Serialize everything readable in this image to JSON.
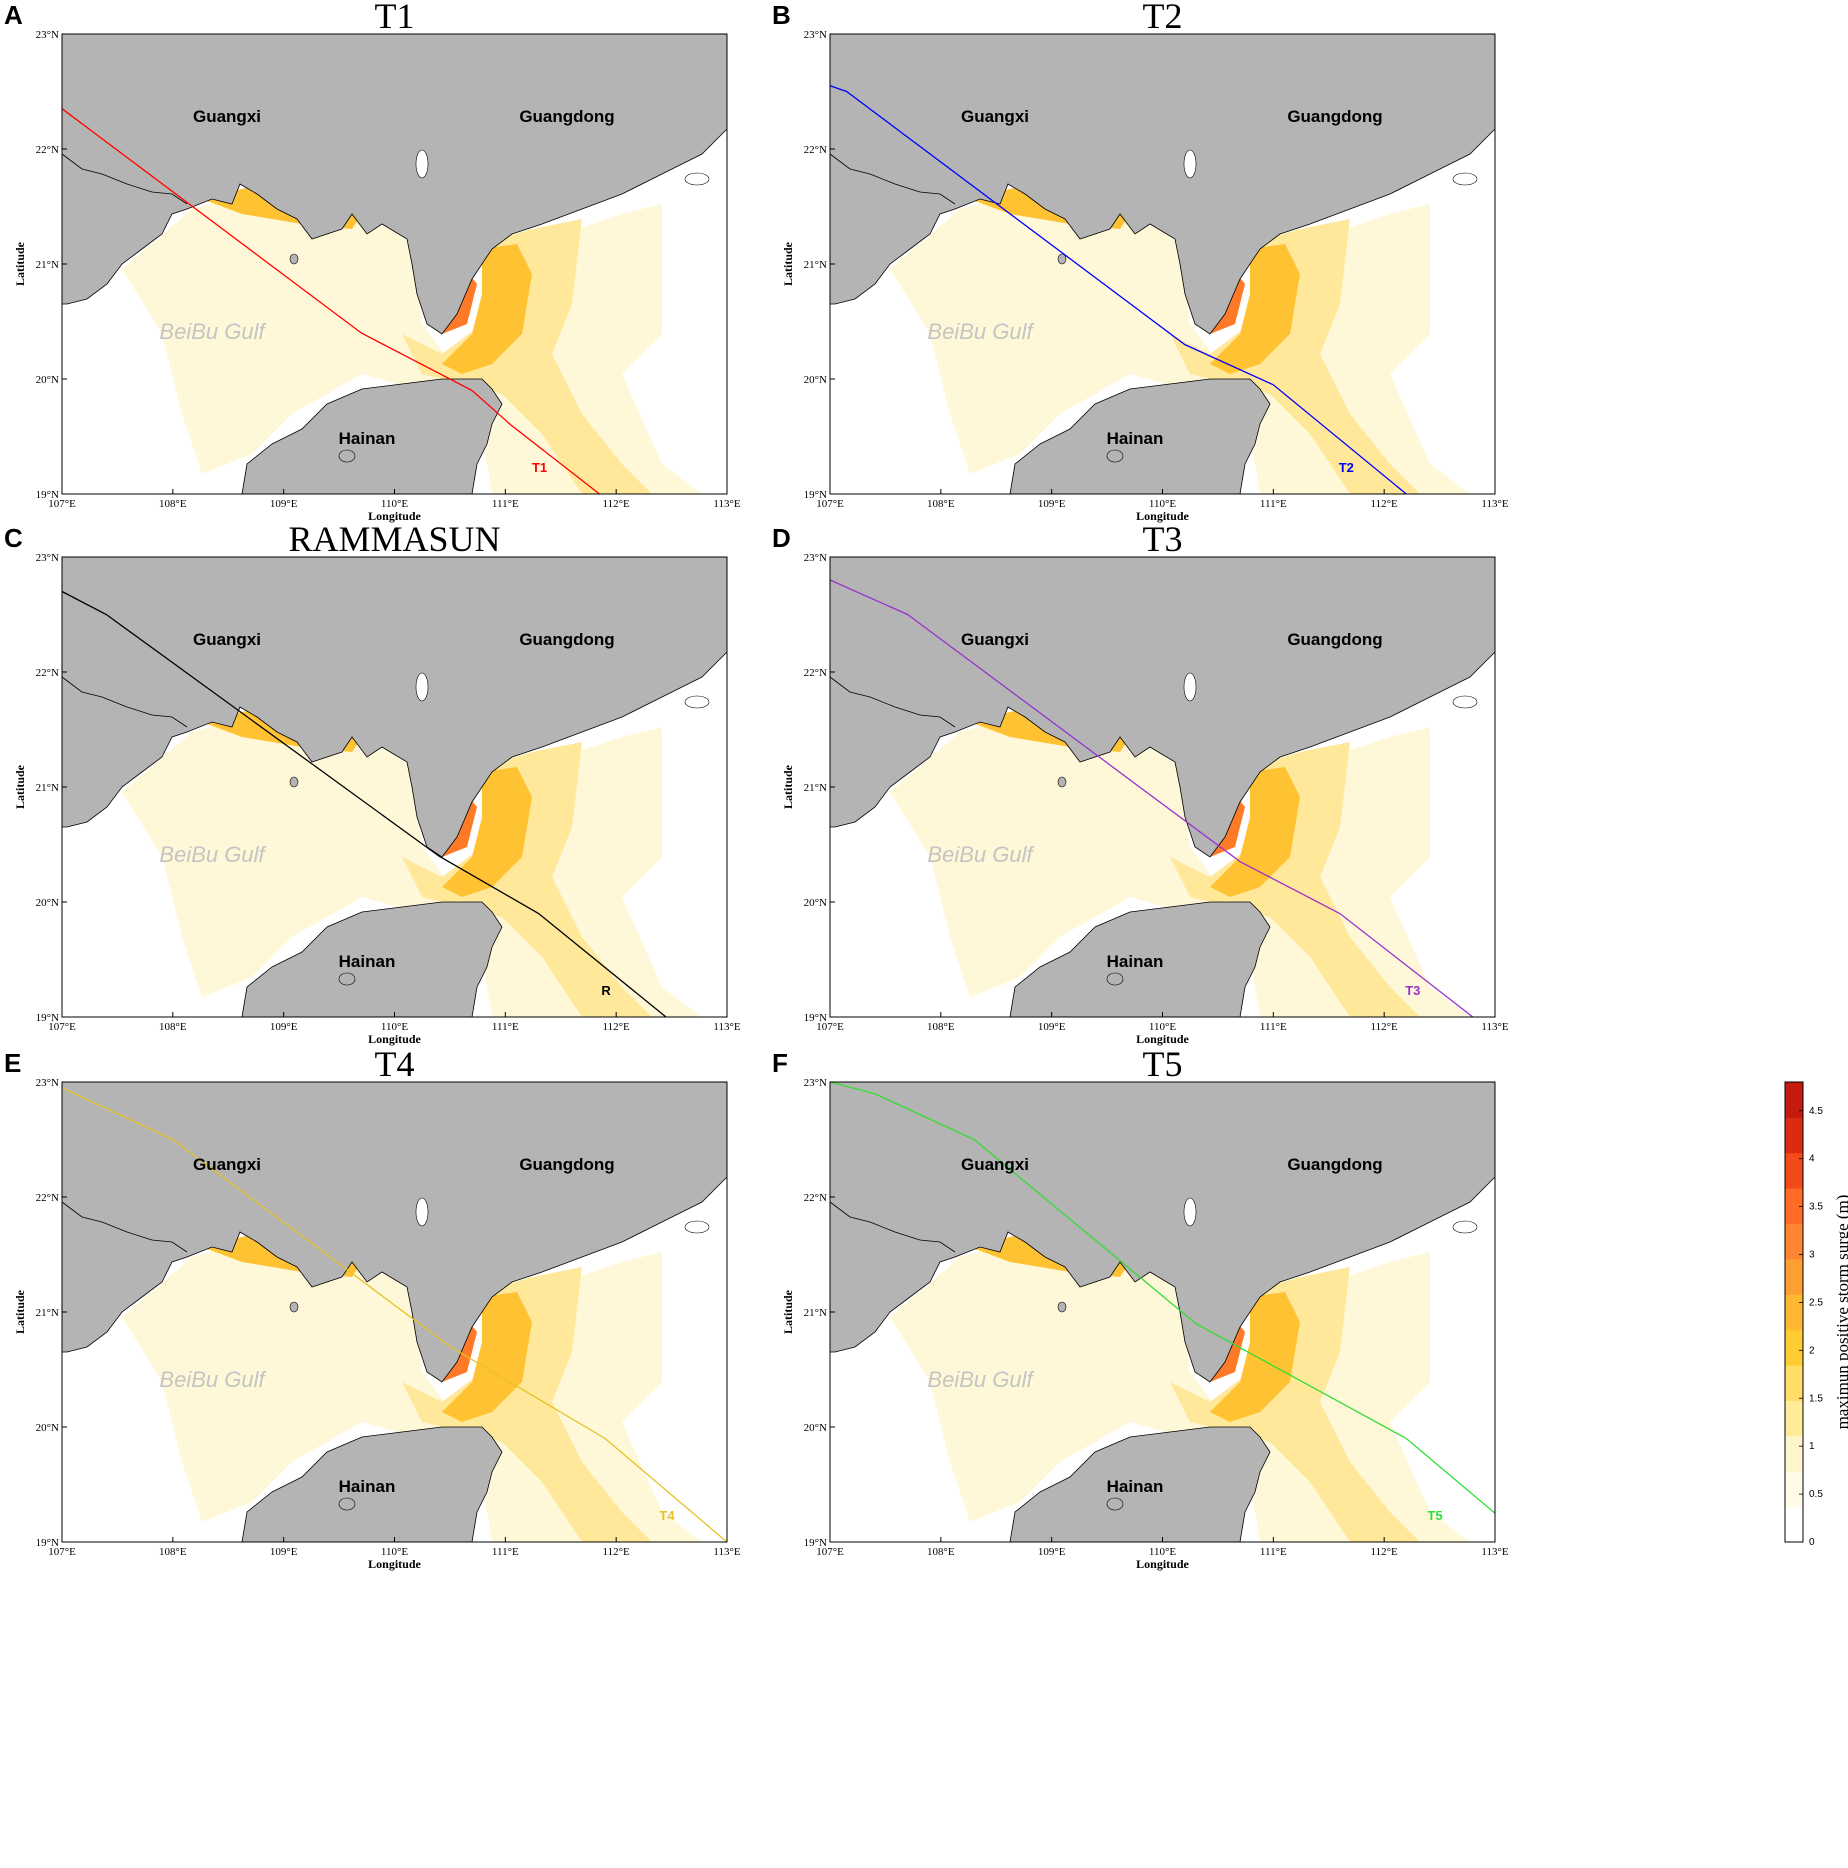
{
  "panels": [
    {
      "letter": "A",
      "title": "T1",
      "track_label": "T1",
      "track_color": "#ff0000",
      "track": [
        [
          107,
          22.35
        ],
        [
          109.7,
          20.4
        ],
        [
          110.7,
          19.9
        ],
        [
          111.05,
          19.6
        ],
        [
          111.85,
          19
        ]
      ]
    },
    {
      "letter": "B",
      "title": "T2",
      "track_label": "T2",
      "track_color": "#0000ff",
      "track": [
        [
          107,
          22.55
        ],
        [
          107.15,
          22.5
        ],
        [
          110.2,
          20.3
        ],
        [
          111,
          19.95
        ],
        [
          112.2,
          19
        ]
      ]
    },
    {
      "letter": "C",
      "title": "RAMMASUN",
      "track_label": "R",
      "track_color": "#000000",
      "track": [
        [
          107,
          22.7
        ],
        [
          107.4,
          22.5
        ],
        [
          110.4,
          20.4
        ],
        [
          111.3,
          19.9
        ],
        [
          112.45,
          19
        ]
      ]
    },
    {
      "letter": "D",
      "title": "T3",
      "track_label": "T3",
      "track_color": "#9933cc",
      "track": [
        [
          107,
          22.8
        ],
        [
          107.7,
          22.5
        ],
        [
          110.7,
          20.35
        ],
        [
          111.6,
          19.9
        ],
        [
          112.8,
          19
        ]
      ]
    },
    {
      "letter": "E",
      "title": "T4",
      "track_label": "T4",
      "track_color": "#e6c228",
      "track": [
        [
          107,
          22.95
        ],
        [
          108,
          22.5
        ],
        [
          110.5,
          20.7
        ],
        [
          111.9,
          19.9
        ],
        [
          113,
          19
        ]
      ]
    },
    {
      "letter": "F",
      "title": "T5",
      "track_label": "T5",
      "track_color": "#33dd33",
      "track": [
        [
          107,
          23.0
        ],
        [
          107.4,
          22.9
        ],
        [
          108.3,
          22.5
        ],
        [
          110.3,
          20.9
        ],
        [
          112.2,
          19.9
        ],
        [
          113,
          19.25
        ]
      ]
    }
  ],
  "labels": {
    "guangxi": "Guangxi",
    "guangdong": "Guangdong",
    "hainan": "Hainan",
    "gulf": "BeiBu Gulf",
    "xlabel": "Longitude",
    "ylabel": "Latitude"
  },
  "x_ticks": [
    "107°E",
    "108°E",
    "109°E",
    "110°E",
    "111°E",
    "112°E",
    "113°E"
  ],
  "y_ticks": [
    "23°N",
    "22°N",
    "21°N",
    "20°N",
    "19°N"
  ],
  "extent": {
    "lon": [
      107,
      113
    ],
    "lat": [
      19,
      23
    ]
  },
  "colorbar": {
    "label": "maximun positive storm surge  (m)",
    "ticks": [
      "0",
      "0.5",
      "1",
      "1.5",
      "2",
      "2.5",
      "3",
      "3.5",
      "4",
      "4.5"
    ],
    "range": [
      0,
      4.8
    ],
    "colors": [
      "#ffffff",
      "#fffbe8",
      "#fff5cc",
      "#ffec99",
      "#ffdd66",
      "#ffcc33",
      "#ffb833",
      "#ff9f33",
      "#ff8533",
      "#ff6a26",
      "#f24a1a",
      "#db2b12",
      "#c51a0f"
    ]
  },
  "colors": {
    "land": "#b4b4b4",
    "coast": "#000000",
    "ocean": "#ffffff"
  }
}
